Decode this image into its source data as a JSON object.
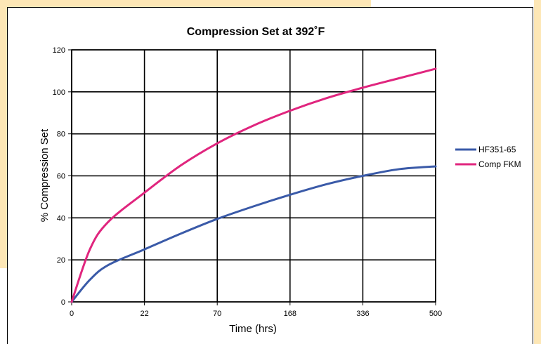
{
  "chart_data": {
    "type": "line",
    "title": "Compression Set at 392˚F",
    "xlabel": "Time (hrs)",
    "ylabel": "% Compression Set",
    "x_categories": [
      "0",
      "22",
      "70",
      "168",
      "336",
      "500"
    ],
    "ylim": [
      0,
      120
    ],
    "yticks": [
      0,
      20,
      40,
      60,
      80,
      100,
      120
    ],
    "grid": true,
    "legend_position": "right",
    "series": [
      {
        "name": "HF351-65",
        "color": "#3a5aa8",
        "x": [
          0,
          0.25,
          0.5,
          1,
          1.5,
          2,
          2.5,
          3,
          3.5,
          4,
          4.5,
          5
        ],
        "values": [
          0,
          10.5,
          17.5,
          25,
          32.5,
          39.5,
          45.5,
          51,
          56,
          60,
          63.2,
          64.5
        ]
      },
      {
        "name": "Comp FKM",
        "color": "#e0257e",
        "x": [
          0,
          0.25,
          0.5,
          1,
          1.5,
          2,
          2.5,
          3,
          3.5,
          4,
          4.5,
          5
        ],
        "values": [
          0,
          25,
          38,
          52,
          65,
          75.5,
          84,
          91,
          97,
          102,
          106.5,
          111
        ]
      }
    ]
  }
}
